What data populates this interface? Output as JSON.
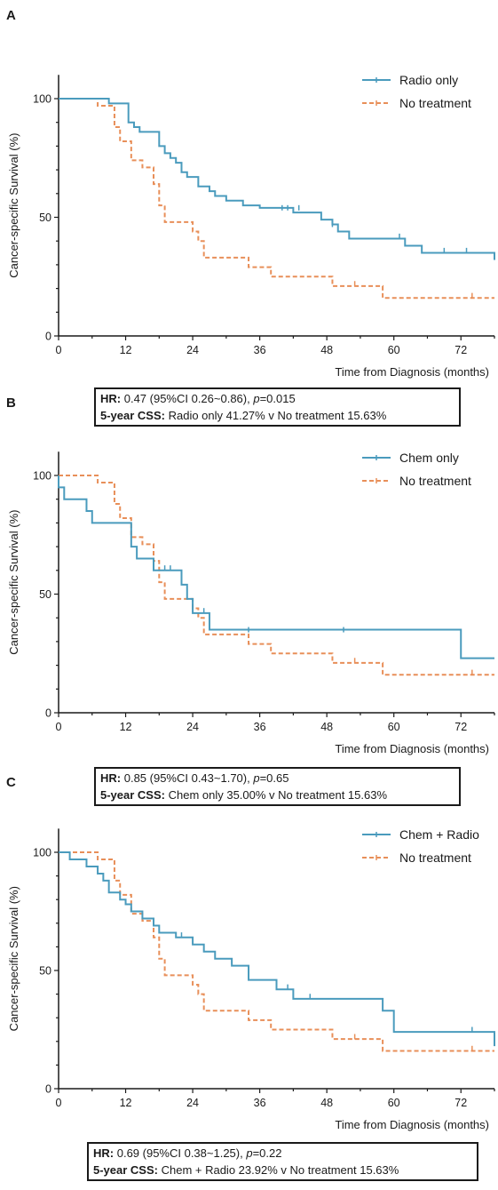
{
  "chart_data": [
    {
      "panel": "A",
      "type": "line",
      "ylabel": "Cancer-specific Survival (%)",
      "xlabel": "Time from Diagnosis (months)",
      "xlim": [
        0,
        78
      ],
      "ylim": [
        0,
        110
      ],
      "xticks": [
        0,
        12,
        24,
        36,
        48,
        60,
        72
      ],
      "yticks": [
        0,
        50,
        100
      ],
      "legend_position": "top-right",
      "series": [
        {
          "name": "Radio only",
          "color": "#4a9bbd",
          "style": "solid",
          "steps": [
            [
              0,
              100
            ],
            [
              9,
              100
            ],
            [
              9,
              98
            ],
            [
              12.5,
              98
            ],
            [
              12.5,
              90
            ],
            [
              13.5,
              90
            ],
            [
              13.5,
              88
            ],
            [
              14.5,
              88
            ],
            [
              14.5,
              86
            ],
            [
              18,
              86
            ],
            [
              18,
              80
            ],
            [
              19,
              80
            ],
            [
              19,
              77
            ],
            [
              20,
              77
            ],
            [
              20,
              75
            ],
            [
              21,
              75
            ],
            [
              21,
              73
            ],
            [
              22,
              73
            ],
            [
              22,
              69
            ],
            [
              23,
              69
            ],
            [
              23,
              67
            ],
            [
              25,
              67
            ],
            [
              25,
              63
            ],
            [
              27,
              63
            ],
            [
              27,
              61
            ],
            [
              28,
              61
            ],
            [
              28,
              59
            ],
            [
              30,
              59
            ],
            [
              30,
              57
            ],
            [
              33,
              57
            ],
            [
              33,
              55
            ],
            [
              36,
              55
            ],
            [
              36,
              54
            ],
            [
              42,
              54
            ],
            [
              42,
              52
            ],
            [
              47,
              52
            ],
            [
              47,
              49
            ],
            [
              49,
              49
            ],
            [
              49,
              47
            ],
            [
              50,
              47
            ],
            [
              50,
              44
            ],
            [
              52,
              44
            ],
            [
              52,
              41
            ],
            [
              62,
              41
            ],
            [
              62,
              38
            ],
            [
              65,
              38
            ],
            [
              65,
              35
            ],
            [
              78,
              35
            ],
            [
              78,
              32
            ]
          ],
          "censor": [
            [
              40,
              54
            ],
            [
              41,
              54
            ],
            [
              43,
              54
            ],
            [
              49,
              47
            ],
            [
              61,
              42
            ],
            [
              69,
              36
            ],
            [
              73,
              36
            ]
          ]
        },
        {
          "name": "No treatment",
          "color": "#e88f59",
          "style": "dashed",
          "steps": [
            [
              0,
              100
            ],
            [
              7,
              100
            ],
            [
              7,
              97
            ],
            [
              10,
              97
            ],
            [
              10,
              88
            ],
            [
              11,
              88
            ],
            [
              11,
              82
            ],
            [
              13,
              82
            ],
            [
              13,
              74
            ],
            [
              15,
              74
            ],
            [
              15,
              71
            ],
            [
              17,
              71
            ],
            [
              17,
              64
            ],
            [
              18,
              64
            ],
            [
              18,
              55
            ],
            [
              19,
              55
            ],
            [
              19,
              48
            ],
            [
              24,
              48
            ],
            [
              24,
              44
            ],
            [
              25,
              44
            ],
            [
              25,
              40
            ],
            [
              26,
              40
            ],
            [
              26,
              33
            ],
            [
              34,
              33
            ],
            [
              34,
              29
            ],
            [
              38,
              29
            ],
            [
              38,
              25
            ],
            [
              49,
              25
            ],
            [
              49,
              21
            ],
            [
              58,
              21
            ],
            [
              58,
              16
            ],
            [
              78,
              16
            ]
          ],
          "censor": [
            [
              53,
              22
            ],
            [
              74,
              17
            ]
          ]
        }
      ],
      "stats": {
        "hr_label": "HR:",
        "hr_text": " 0.47 (95%CI 0.26~0.86), ",
        "p_label": "p",
        "p_value": "=0.015",
        "css_label": "5-year CSS:",
        "css_text": " Radio only 41.27% v No treatment 15.63%"
      }
    },
    {
      "panel": "B",
      "type": "line",
      "ylabel": "Cancer-specific Survival (%)",
      "xlabel": "Time from Diagnosis (months)",
      "xlim": [
        0,
        78
      ],
      "ylim": [
        0,
        110
      ],
      "xticks": [
        0,
        12,
        24,
        36,
        48,
        60,
        72
      ],
      "yticks": [
        0,
        50,
        100
      ],
      "legend_position": "top-right",
      "series": [
        {
          "name": "Chem only",
          "color": "#4a9bbd",
          "style": "solid",
          "steps": [
            [
              0,
              100
            ],
            [
              0,
              95
            ],
            [
              1,
              95
            ],
            [
              1,
              90
            ],
            [
              5,
              90
            ],
            [
              5,
              85
            ],
            [
              6,
              85
            ],
            [
              6,
              80
            ],
            [
              13,
              80
            ],
            [
              13,
              70
            ],
            [
              14,
              70
            ],
            [
              14,
              65
            ],
            [
              17,
              65
            ],
            [
              17,
              60
            ],
            [
              22,
              60
            ],
            [
              22,
              54
            ],
            [
              23,
              54
            ],
            [
              23,
              48
            ],
            [
              24,
              48
            ],
            [
              24,
              42
            ],
            [
              27,
              42
            ],
            [
              27,
              35
            ],
            [
              72,
              35
            ],
            [
              72,
              23
            ],
            [
              78,
              23
            ]
          ],
          "censor": [
            [
              19,
              61
            ],
            [
              20,
              61
            ],
            [
              26,
              43
            ],
            [
              34,
              35
            ],
            [
              51,
              35
            ]
          ]
        },
        {
          "name": "No treatment",
          "color": "#e88f59",
          "style": "dashed",
          "steps": [
            [
              0,
              100
            ],
            [
              7,
              100
            ],
            [
              7,
              97
            ],
            [
              10,
              97
            ],
            [
              10,
              88
            ],
            [
              11,
              88
            ],
            [
              11,
              82
            ],
            [
              13,
              82
            ],
            [
              13,
              74
            ],
            [
              15,
              74
            ],
            [
              15,
              71
            ],
            [
              17,
              71
            ],
            [
              17,
              64
            ],
            [
              18,
              64
            ],
            [
              18,
              55
            ],
            [
              19,
              55
            ],
            [
              19,
              48
            ],
            [
              24,
              48
            ],
            [
              24,
              44
            ],
            [
              25,
              44
            ],
            [
              25,
              40
            ],
            [
              26,
              40
            ],
            [
              26,
              33
            ],
            [
              34,
              33
            ],
            [
              34,
              29
            ],
            [
              38,
              29
            ],
            [
              38,
              25
            ],
            [
              49,
              25
            ],
            [
              49,
              21
            ],
            [
              58,
              21
            ],
            [
              58,
              16
            ],
            [
              78,
              16
            ]
          ],
          "censor": [
            [
              53,
              22
            ],
            [
              74,
              17
            ]
          ]
        }
      ],
      "stats": {
        "hr_label": "HR:",
        "hr_text": " 0.85 (95%CI 0.43~1.70), ",
        "p_label": "p",
        "p_value": "=0.65",
        "css_label": "5-year CSS:",
        "css_text": " Chem only 35.00% v No treatment 15.63%"
      }
    },
    {
      "panel": "C",
      "type": "line",
      "ylabel": "Cancer-specific Survival (%)",
      "xlabel": "Time from Diagnosis (months)",
      "xlim": [
        0,
        78
      ],
      "ylim": [
        0,
        110
      ],
      "xticks": [
        0,
        12,
        24,
        36,
        48,
        60,
        72
      ],
      "yticks": [
        0,
        50,
        100
      ],
      "legend_position": "top-right",
      "series": [
        {
          "name": "Chem + Radio",
          "color": "#4a9bbd",
          "style": "solid",
          "steps": [
            [
              0,
              100
            ],
            [
              2,
              100
            ],
            [
              2,
              97
            ],
            [
              5,
              97
            ],
            [
              5,
              94
            ],
            [
              7,
              94
            ],
            [
              7,
              91
            ],
            [
              8,
              91
            ],
            [
              8,
              88
            ],
            [
              9,
              88
            ],
            [
              9,
              83
            ],
            [
              11,
              83
            ],
            [
              11,
              80
            ],
            [
              12,
              80
            ],
            [
              12,
              78
            ],
            [
              13,
              78
            ],
            [
              13,
              75
            ],
            [
              15,
              75
            ],
            [
              15,
              72
            ],
            [
              17,
              72
            ],
            [
              17,
              69
            ],
            [
              18,
              69
            ],
            [
              18,
              66
            ],
            [
              21,
              66
            ],
            [
              21,
              64
            ],
            [
              24,
              64
            ],
            [
              24,
              61
            ],
            [
              26,
              61
            ],
            [
              26,
              58
            ],
            [
              28,
              58
            ],
            [
              28,
              55
            ],
            [
              31,
              55
            ],
            [
              31,
              52
            ],
            [
              34,
              52
            ],
            [
              34,
              46
            ],
            [
              39,
              46
            ],
            [
              39,
              42
            ],
            [
              42,
              42
            ],
            [
              42,
              38
            ],
            [
              58,
              38
            ],
            [
              58,
              33
            ],
            [
              60,
              33
            ],
            [
              60,
              24
            ],
            [
              78,
              24
            ],
            [
              78,
              18
            ]
          ],
          "censor": [
            [
              22,
              65
            ],
            [
              31,
              54
            ],
            [
              41,
              43
            ],
            [
              45,
              39
            ],
            [
              74,
              25
            ]
          ]
        },
        {
          "name": "No treatment",
          "color": "#e88f59",
          "style": "dashed",
          "steps": [
            [
              0,
              100
            ],
            [
              7,
              100
            ],
            [
              7,
              97
            ],
            [
              10,
              97
            ],
            [
              10,
              88
            ],
            [
              11,
              88
            ],
            [
              11,
              82
            ],
            [
              13,
              82
            ],
            [
              13,
              74
            ],
            [
              15,
              74
            ],
            [
              15,
              71
            ],
            [
              17,
              71
            ],
            [
              17,
              64
            ],
            [
              18,
              64
            ],
            [
              18,
              55
            ],
            [
              19,
              55
            ],
            [
              19,
              48
            ],
            [
              24,
              48
            ],
            [
              24,
              44
            ],
            [
              25,
              44
            ],
            [
              25,
              40
            ],
            [
              26,
              40
            ],
            [
              26,
              33
            ],
            [
              34,
              33
            ],
            [
              34,
              29
            ],
            [
              38,
              29
            ],
            [
              38,
              25
            ],
            [
              49,
              25
            ],
            [
              49,
              21
            ],
            [
              58,
              21
            ],
            [
              58,
              16
            ],
            [
              78,
              16
            ]
          ],
          "censor": [
            [
              53,
              22
            ],
            [
              74,
              17
            ]
          ]
        }
      ],
      "stats": {
        "hr_label": "HR:",
        "hr_text": " 0.69 (95%CI 0.38~1.25), ",
        "p_label": "p",
        "p_value": "=0.22",
        "css_label": "5-year CSS:",
        "css_text": " Chem + Radio 23.92% v No treatment 15.63%"
      }
    }
  ]
}
